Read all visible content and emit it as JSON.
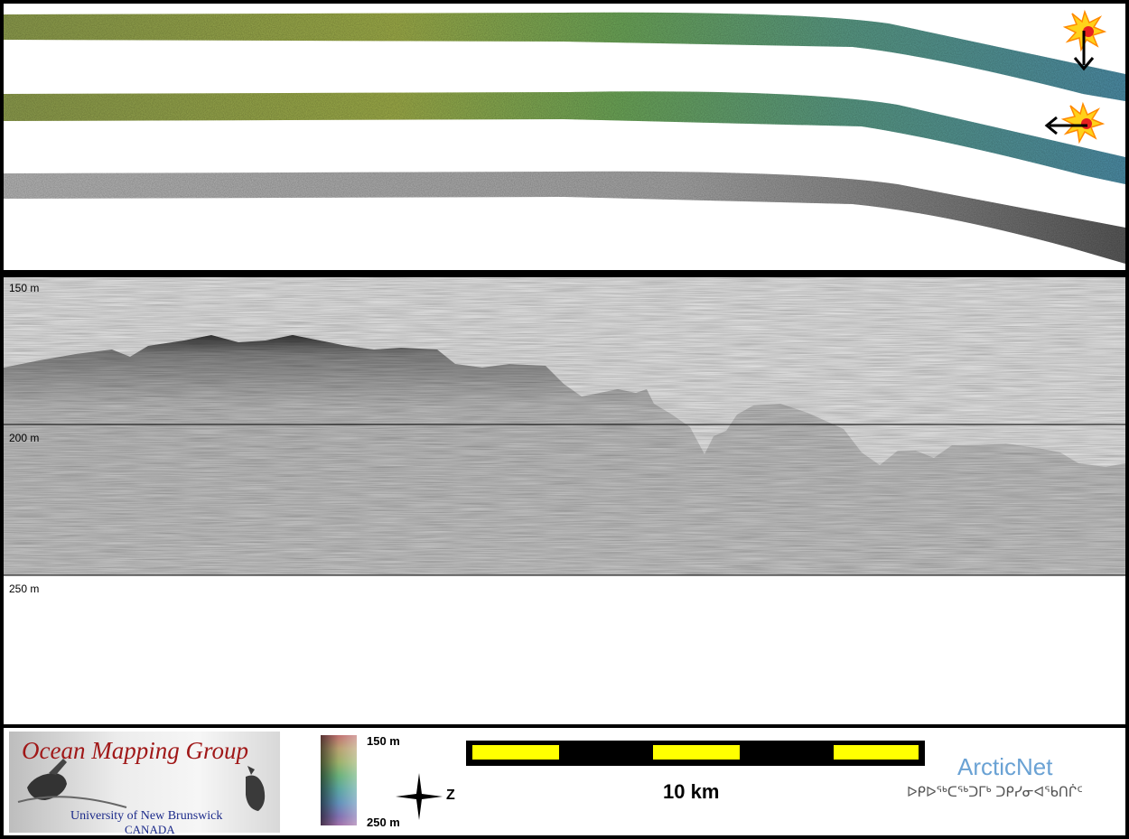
{
  "map": {
    "strips": [
      {
        "name": "bathymetry-strip-upper",
        "style": "color-shaded"
      },
      {
        "name": "bathymetry-strip-middle",
        "style": "color-shaded"
      },
      {
        "name": "backscatter-strip",
        "style": "grayscale"
      }
    ],
    "markers": [
      {
        "icon": "sun-burst-icon",
        "arrow": "down-arrow-icon"
      },
      {
        "icon": "sun-burst-icon",
        "arrow": "left-arrow-icon"
      }
    ]
  },
  "profile": {
    "depth_labels": [
      "150 m",
      "200 m",
      "250 m"
    ],
    "depth_lines_m": [
      150,
      200,
      250
    ]
  },
  "footer": {
    "logo": {
      "title": "Ocean Mapping Group",
      "university": "University of New Brunswick",
      "country": "CANADA"
    },
    "color_legend": {
      "top_label": "150 m",
      "bottom_label": "250 m"
    },
    "north_arrow": {
      "label": "Z",
      "icon": "compass-star-icon"
    },
    "scale_bar": {
      "label": "10 km",
      "colors": {
        "fill": "#ffff00",
        "bar": "#000000"
      }
    },
    "arcticnet": {
      "title": "ArcticNet",
      "syllabics": "ᐅᑭᐅᖅᑕᖅᑐᒥᒃ ᑐᑭᓯᓂᐊᖃᑎᒌᑦ"
    }
  }
}
